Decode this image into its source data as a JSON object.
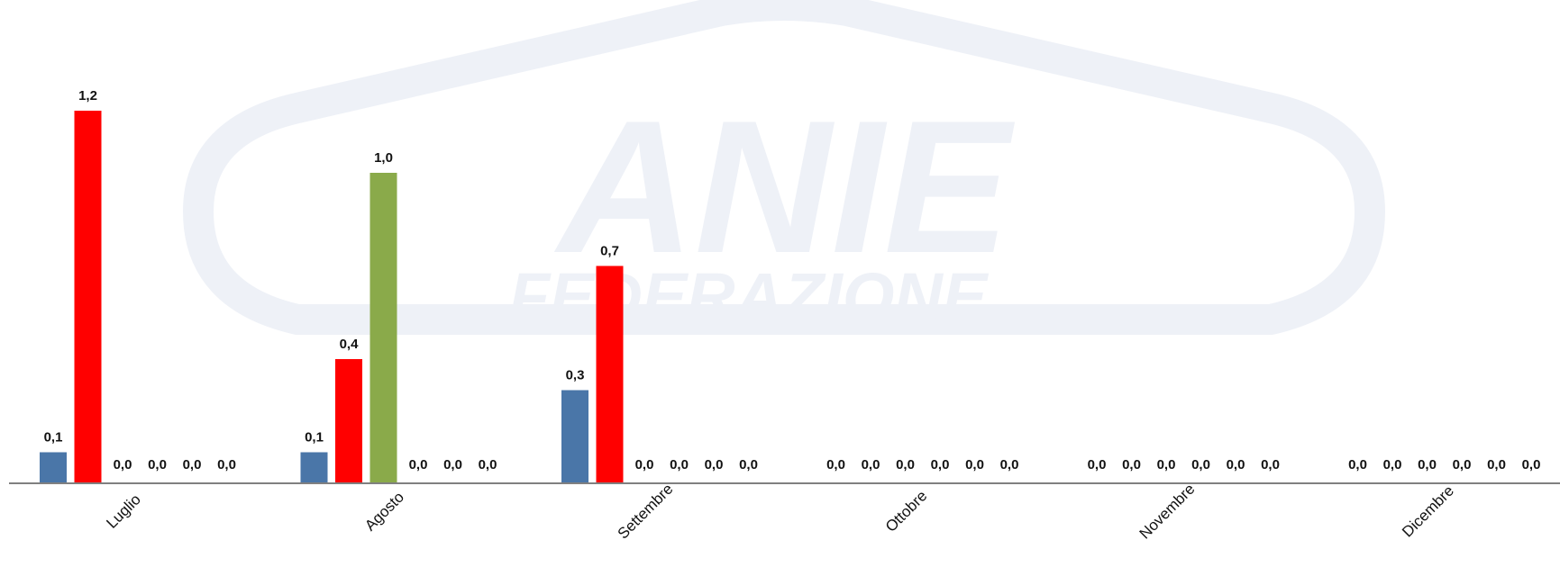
{
  "watermark": {
    "logo_text": "ANIE",
    "sub_text": "FEDERAZIONE",
    "color": "#eef1f7"
  },
  "chart_data": {
    "type": "bar",
    "categories": [
      "Luglio",
      "Agosto",
      "Settembre",
      "Ottobre",
      "Novembre",
      "Dicembre"
    ],
    "series": [
      {
        "color": "#4a76a8",
        "values": [
          0.1,
          0.1,
          0.3,
          0.0,
          0.0,
          0.0
        ],
        "labels": [
          "0,1",
          "0,1",
          "0,3",
          "0,0",
          "0,0",
          "0,0"
        ]
      },
      {
        "color": "#ff0000",
        "values": [
          1.2,
          0.4,
          0.7,
          0.0,
          0.0,
          0.0
        ],
        "labels": [
          "1,2",
          "0,4",
          "0,7",
          "0,0",
          "0,0",
          "0,0"
        ]
      },
      {
        "color": "#8aaa4a",
        "values": [
          0.0,
          1.0,
          0.0,
          0.0,
          0.0,
          0.0
        ],
        "labels": [
          "0,0",
          "1,0",
          "0,0",
          "0,0",
          "0,0",
          "0,0"
        ]
      },
      {
        "color": "#7f7f7f",
        "values": [
          0.0,
          0.0,
          0.0,
          0.0,
          0.0,
          0.0
        ],
        "labels": [
          "0,0",
          "0,0",
          "0,0",
          "0,0",
          "0,0",
          "0,0"
        ]
      },
      {
        "color": "#7f7f7f",
        "values": [
          0.0,
          0.0,
          0.0,
          0.0,
          0.0,
          0.0
        ],
        "labels": [
          "0,0",
          "0,0",
          "0,0",
          "0,0",
          "0,0",
          "0,0"
        ]
      },
      {
        "color": "#7f7f7f",
        "values": [
          0.0,
          0.0,
          0.0,
          0.0,
          0.0,
          0.0
        ],
        "labels": [
          "0,0",
          "0,0",
          "0,0",
          "0,0",
          "0,0",
          "0,0"
        ]
      }
    ],
    "ylim": [
      0,
      1.2
    ],
    "grid": false,
    "legend": "none",
    "axis_color": "#808080"
  }
}
